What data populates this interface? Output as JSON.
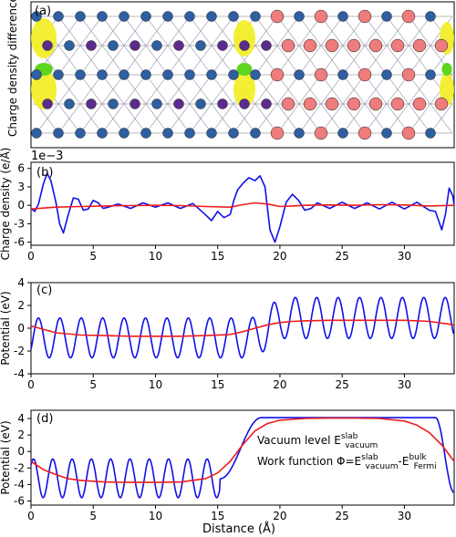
{
  "figure": {
    "panel_a_label": "(a)",
    "panel_a_ylabel": "Charge density difference",
    "panel_b_label": "(b)",
    "panel_c_label": "(c)",
    "panel_d_label": "(d)",
    "xlabel": "Distance (Å)",
    "exponent_label": "1e−3"
  },
  "colors": {
    "blue_curve": "#1010e8",
    "red_curve": "#ee1c1c",
    "atom_blue": "#2e5fa0",
    "atom_purple": "#5b2c8e",
    "atom_pink": "#ee7c7c",
    "isosurface_yellow": "#f2ee2a",
    "isosurface_green": "#5cd61e"
  },
  "structure": {
    "left_region_atoms": [
      "blue",
      "purple"
    ],
    "right_region_atoms": [
      "blue",
      "pink"
    ],
    "isosurfaces": [
      "yellow",
      "green"
    ]
  },
  "chart_data": [
    {
      "panel": "b",
      "type": "line",
      "ylabel": "Charge density (e/Å)",
      "xlim": [
        0,
        34
      ],
      "ylim": [
        -6.5,
        7
      ],
      "y_scale_note": "1e−3",
      "xticks": [
        0,
        5,
        10,
        15,
        20,
        25,
        30
      ],
      "yticks": [
        -6,
        -3,
        0,
        3,
        6
      ],
      "series": [
        {
          "color": "blue",
          "x": [
            0,
            0.3,
            0.6,
            1.0,
            1.3,
            1.6,
            2.0,
            2.3,
            2.6,
            3.0,
            3.4,
            3.8,
            4.2,
            4.6,
            5.0,
            5.4,
            5.8,
            6.2,
            7,
            8,
            9,
            10,
            11,
            12,
            13,
            14,
            14.5,
            15,
            15.5,
            16,
            16.3,
            16.6,
            17,
            17.5,
            18.0,
            18.4,
            18.8,
            19.2,
            19.6,
            20.0,
            20.5,
            21.0,
            21.5,
            22.0,
            22.5,
            23,
            24,
            25,
            26,
            27,
            28,
            29,
            30,
            31,
            32,
            32.5,
            33.0,
            33.3,
            33.6,
            33.9,
            34
          ],
          "y": [
            -0.5,
            -1.0,
            0.2,
            3.5,
            5.2,
            4.0,
            0.5,
            -3.0,
            -4.5,
            -1.5,
            1.2,
            1.0,
            -0.8,
            -0.6,
            0.8,
            0.4,
            -0.5,
            -0.3,
            0.2,
            -0.5,
            0.4,
            -0.3,
            0.4,
            -0.5,
            0.3,
            -1.5,
            -2.5,
            -1.0,
            -2.0,
            -1.5,
            0.8,
            2.5,
            3.5,
            4.5,
            4.0,
            4.8,
            3.0,
            -4.0,
            -6.0,
            -3.5,
            0.5,
            1.8,
            0.8,
            -0.8,
            -0.5,
            0.4,
            -0.5,
            0.5,
            -0.5,
            0.4,
            -0.6,
            0.5,
            -0.6,
            0.5,
            -0.8,
            -1.0,
            -4.0,
            -1.5,
            2.8,
            1.5,
            0
          ]
        },
        {
          "color": "red",
          "x": [
            0,
            2,
            4,
            6,
            8,
            10,
            12,
            14,
            16,
            17,
            18,
            19,
            20,
            21,
            22,
            24,
            26,
            28,
            30,
            32,
            34
          ],
          "y": [
            -0.6,
            -0.3,
            -0.2,
            -0.1,
            -0.05,
            0,
            -0.05,
            -0.2,
            -0.3,
            0.1,
            0.4,
            0.2,
            -0.2,
            -0.1,
            0,
            0.05,
            0,
            0.1,
            0.05,
            -0.1,
            0
          ]
        }
      ]
    },
    {
      "panel": "c",
      "type": "line",
      "ylabel": "Potential (eV)",
      "xlim": [
        0,
        34
      ],
      "ylim": [
        -4,
        4
      ],
      "xticks": [
        0,
        5,
        10,
        15,
        20,
        25,
        30
      ],
      "yticks": [
        -4,
        -2,
        0,
        2,
        4
      ],
      "series": [
        {
          "color": "blue",
          "description": "oscillating layer potential; minima ~-2.6 and maxima ~0.9 for x<18, maxima ~2.7 and minima ~-0.9 for x>20"
        },
        {
          "color": "red",
          "x": [
            0,
            2,
            4,
            6,
            8,
            10,
            12,
            14,
            16,
            17,
            18,
            19,
            20,
            21,
            22,
            24,
            26,
            28,
            30,
            32,
            34
          ],
          "y": [
            0.2,
            -0.4,
            -0.6,
            -0.65,
            -0.7,
            -0.7,
            -0.7,
            -0.65,
            -0.55,
            -0.3,
            0.0,
            0.3,
            0.5,
            0.6,
            0.65,
            0.7,
            0.7,
            0.7,
            0.7,
            0.6,
            0.3
          ]
        }
      ]
    },
    {
      "panel": "d",
      "type": "line",
      "ylabel": "Potential (eV)",
      "xlim": [
        0,
        34
      ],
      "ylim": [
        -6.5,
        5
      ],
      "xticks": [
        0,
        5,
        10,
        15,
        20,
        25,
        30
      ],
      "yticks": [
        -6,
        -4,
        -2,
        0,
        2,
        4
      ],
      "annotations": [
        "Vacuum level E$vacuum$slab",
        "Work function Φ=E$vacuum$slab-E$Fermi$bulk"
      ],
      "annotation_text": {
        "vacuum_prefix": "Vacuum level E",
        "vacuum_sub": "vacuum",
        "vacuum_sup": "slab",
        "wf_prefix": "Work function Φ=E",
        "wf_sub1": "vacuum",
        "wf_sup1": "slab",
        "wf_mid": "-E",
        "wf_sub2": "Fermi",
        "wf_sup2": "bulk"
      },
      "series": [
        {
          "color": "blue",
          "description": "oscillating potential between ~-5.6 and ~-0.9 for x<15, rising to flat vacuum plateau ~4.1 for 18<x<32, then drop to ~-5 at x=34"
        },
        {
          "color": "red",
          "x": [
            0,
            1,
            2,
            3,
            4,
            6,
            8,
            10,
            12,
            14,
            15,
            16,
            17,
            18,
            19,
            20,
            22,
            24,
            26,
            28,
            30,
            31,
            32,
            33,
            34
          ],
          "y": [
            -1.2,
            -2.2,
            -2.8,
            -3.3,
            -3.5,
            -3.7,
            -3.75,
            -3.75,
            -3.7,
            -3.3,
            -2.6,
            -1.2,
            0.8,
            2.5,
            3.4,
            3.8,
            4.0,
            4.05,
            4.05,
            4.0,
            3.7,
            3.2,
            2.3,
            0.8,
            -1.2
          ]
        }
      ]
    }
  ]
}
